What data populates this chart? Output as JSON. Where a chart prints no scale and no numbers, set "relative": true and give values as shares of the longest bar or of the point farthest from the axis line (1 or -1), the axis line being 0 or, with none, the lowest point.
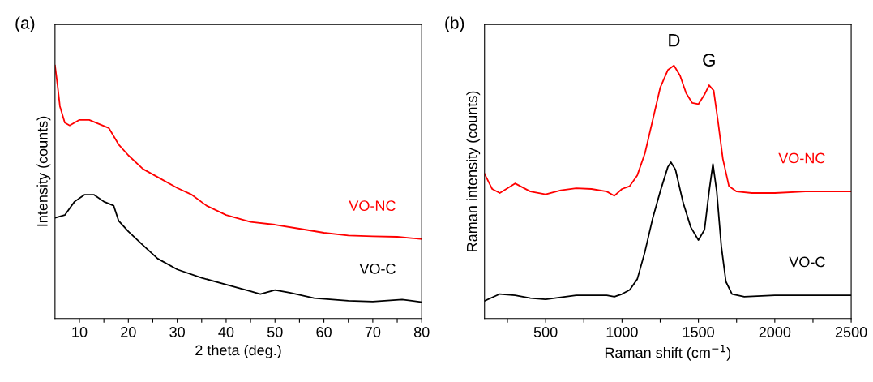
{
  "chart_data": [
    {
      "type": "line",
      "relative": true,
      "xlabel": "2 theta (deg.)",
      "ylabel": "Intensity (counts)",
      "xlim": [
        5,
        80
      ],
      "xticks": [
        10,
        {
          "value": 15,
          "label": null
        },
        20,
        {
          "value": 25,
          "label": null
        },
        30,
        {
          "value": 35,
          "label": null
        },
        40,
        {
          "value": 45,
          "label": null
        },
        50,
        {
          "value": 55,
          "label": null
        },
        60,
        {
          "value": 65,
          "label": null
        },
        70,
        {
          "value": 75,
          "label": null
        },
        80
      ],
      "tick_labels": "x",
      "grid": false,
      "legend": false,
      "annotations": [
        "(a)"
      ],
      "series": [
        {
          "name": "VO-NC",
          "color": "#ff0000",
          "x": [
            5,
            5.5,
            6,
            7,
            8,
            10,
            12,
            14,
            16,
            18,
            20,
            23,
            26,
            30,
            33,
            36,
            40,
            45,
            50,
            55,
            60,
            65,
            70,
            75,
            80
          ],
          "values": [
            1.0,
            0.925,
            0.839,
            0.774,
            0.763,
            0.785,
            0.785,
            0.769,
            0.753,
            0.688,
            0.645,
            0.591,
            0.559,
            0.516,
            0.489,
            0.446,
            0.409,
            0.382,
            0.371,
            0.355,
            0.339,
            0.328,
            0.325,
            0.323,
            0.314
          ]
        },
        {
          "name": "VO-C",
          "color": "#000000",
          "x": [
            5,
            7,
            9,
            11,
            13,
            15,
            17,
            18,
            20,
            23,
            26,
            30,
            35,
            40,
            45,
            47,
            50,
            53,
            58,
            65,
            70,
            76,
            80
          ],
          "values": [
            0.398,
            0.409,
            0.462,
            0.489,
            0.489,
            0.462,
            0.446,
            0.387,
            0.344,
            0.29,
            0.237,
            0.194,
            0.161,
            0.134,
            0.108,
            0.097,
            0.113,
            0.102,
            0.081,
            0.07,
            0.067,
            0.075,
            0.065
          ]
        }
      ]
    },
    {
      "type": "line",
      "relative": true,
      "xlabel": "Raman shift (cm$^{−1}$)",
      "ylabel": "Raman intensity (counts)",
      "xlim": [
        100,
        2500
      ],
      "xticks": [
        {
          "value": 250,
          "label": null
        },
        500,
        {
          "value": 750,
          "label": null
        },
        1000,
        {
          "value": 1250,
          "label": null
        },
        1500,
        {
          "value": 1750,
          "label": null
        },
        2000,
        {
          "value": 2250,
          "label": null
        },
        2500
      ],
      "tick_labels": "x",
      "grid": false,
      "legend": false,
      "annotations": [
        "(b)",
        "D",
        "G"
      ],
      "series": [
        {
          "name": "VO-NC",
          "color": "#ff0000",
          "x": [
            100,
            150,
            200,
            300,
            400,
            500,
            600,
            700,
            800,
            900,
            950,
            1000,
            1050,
            1100,
            1150,
            1200,
            1250,
            1300,
            1340,
            1380,
            1420,
            1460,
            1500,
            1540,
            1570,
            1600,
            1630,
            1660,
            1700,
            1750,
            1850,
            2000,
            2200,
            2500
          ],
          "values": [
            0.572,
            0.512,
            0.496,
            0.534,
            0.502,
            0.491,
            0.507,
            0.515,
            0.512,
            0.502,
            0.485,
            0.512,
            0.523,
            0.566,
            0.653,
            0.782,
            0.912,
            0.982,
            1.0,
            0.96,
            0.89,
            0.852,
            0.847,
            0.885,
            0.922,
            0.901,
            0.771,
            0.631,
            0.523,
            0.502,
            0.496,
            0.496,
            0.502,
            0.502
          ]
        },
        {
          "name": "VO-C",
          "color": "#000000",
          "x": [
            100,
            200,
            300,
            400,
            500,
            700,
            900,
            950,
            1000,
            1050,
            1100,
            1150,
            1200,
            1250,
            1300,
            1320,
            1350,
            1400,
            1450,
            1500,
            1540,
            1570,
            1595,
            1620,
            1650,
            1680,
            1720,
            1800,
            2000,
            2500
          ],
          "values": [
            0.07,
            0.097,
            0.092,
            0.081,
            0.076,
            0.092,
            0.092,
            0.086,
            0.097,
            0.113,
            0.156,
            0.264,
            0.394,
            0.502,
            0.599,
            0.618,
            0.588,
            0.458,
            0.361,
            0.31,
            0.351,
            0.502,
            0.611,
            0.502,
            0.286,
            0.146,
            0.097,
            0.086,
            0.092,
            0.092
          ]
        }
      ]
    }
  ]
}
